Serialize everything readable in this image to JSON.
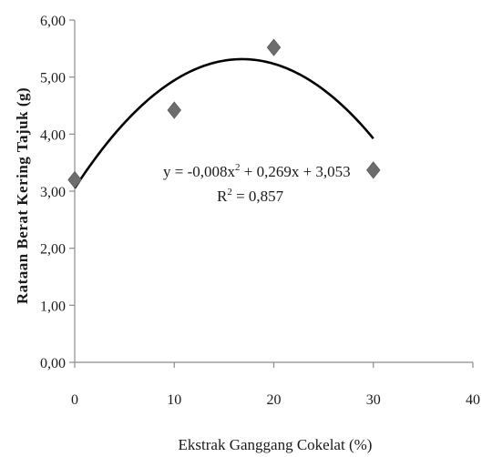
{
  "chart_data": {
    "type": "scatter",
    "xlabel": "Ekstrak Ganggang Cokelat (%)",
    "ylabel": "Rataan Berat Kering Tajuk (g)",
    "xlim": [
      0,
      40
    ],
    "ylim": [
      0,
      6
    ],
    "x_ticks": [
      "0",
      "10",
      "20",
      "30",
      "40"
    ],
    "y_ticks": [
      "0,00",
      "1,00",
      "2,00",
      "3,00",
      "4,00",
      "5,00",
      "6,00"
    ],
    "grid": false,
    "marker": "diamond",
    "marker_color": "#6d6d6d",
    "line_color": "#000000",
    "points": [
      {
        "x": 0,
        "y": 3.2
      },
      {
        "x": 10,
        "y": 4.42
      },
      {
        "x": 20,
        "y": 5.52
      },
      {
        "x": 30,
        "y": 3.37
      }
    ],
    "trendline": {
      "type": "polynomial",
      "coefficients": {
        "a": -0.008,
        "b": 0.269,
        "c": 3.053
      },
      "x_range": [
        0,
        30
      ]
    },
    "annotations": {
      "equation_prefix": "y = -0,008x",
      "equation_exponent": "2",
      "equation_suffix": " + 0,269x + 3,053",
      "r2_prefix": "R",
      "r2_exponent": "2",
      "r2_suffix": " = 0,857"
    }
  }
}
